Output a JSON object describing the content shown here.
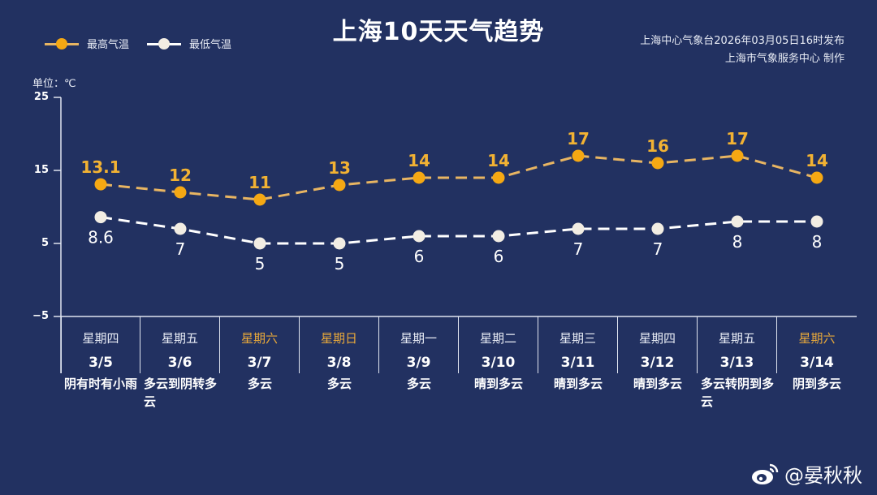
{
  "header": {
    "title": "上海10天天气趋势",
    "source_line1": "上海中心气象台2026年03月05日16时发布",
    "source_line2": "上海市气象服务中心  制作",
    "unit_label": "单位：℃"
  },
  "legend": {
    "high_label": "最高气温",
    "low_label": "最低气温"
  },
  "colors": {
    "background": "#223161",
    "high": "#f5a813",
    "high_line": "#e8b562",
    "low": "#f2ede3",
    "low_line": "#ffffff",
    "weekend": "#e9a93a"
  },
  "axis": {
    "ticks": [
      "25",
      "15",
      "5",
      "−5"
    ]
  },
  "days": [
    {
      "weekday": "星期四",
      "date": "3/5",
      "weekend": false,
      "condition": "阴有时有小雨"
    },
    {
      "weekday": "星期五",
      "date": "3/6",
      "weekend": false,
      "condition": "多云到阴转多云"
    },
    {
      "weekday": "星期六",
      "date": "3/7",
      "weekend": true,
      "condition": "多云"
    },
    {
      "weekday": "星期日",
      "date": "3/8",
      "weekend": true,
      "condition": "多云"
    },
    {
      "weekday": "星期一",
      "date": "3/9",
      "weekend": false,
      "condition": "多云"
    },
    {
      "weekday": "星期二",
      "date": "3/10",
      "weekend": false,
      "condition": "晴到多云"
    },
    {
      "weekday": "星期三",
      "date": "3/11",
      "weekend": false,
      "condition": "晴到多云"
    },
    {
      "weekday": "星期四",
      "date": "3/12",
      "weekend": false,
      "condition": "晴到多云"
    },
    {
      "weekday": "星期五",
      "date": "3/13",
      "weekend": false,
      "condition": "多云转阴到多云"
    },
    {
      "weekday": "星期六",
      "date": "3/14",
      "weekend": true,
      "condition": "阴到多云"
    }
  ],
  "watermark": {
    "handle": "@晏秋秋"
  },
  "chart_data": {
    "type": "line",
    "title": "上海10天天气趋势",
    "xlabel": "",
    "ylabel": "单位：℃",
    "categories": [
      "3/5",
      "3/6",
      "3/7",
      "3/8",
      "3/9",
      "3/10",
      "3/11",
      "3/12",
      "3/13",
      "3/14"
    ],
    "series": [
      {
        "name": "最高气温",
        "values": [
          13.1,
          12,
          11,
          13,
          14,
          14,
          17,
          16,
          17,
          14
        ],
        "labels": [
          "13.1",
          "12",
          "11",
          "13",
          "14",
          "14",
          "17",
          "16",
          "17",
          "14"
        ]
      },
      {
        "name": "最低气温",
        "values": [
          8.6,
          7,
          5,
          5,
          6,
          6,
          7,
          7,
          8,
          8
        ],
        "labels": [
          "8.6",
          "7",
          "5",
          "5",
          "6",
          "6",
          "7",
          "7",
          "8",
          "8"
        ]
      }
    ],
    "ylim": [
      -5,
      25
    ],
    "yticks": [
      25,
      15,
      5,
      -5
    ],
    "grid": false,
    "legend_position": "top-left",
    "line_style": "dashed"
  }
}
